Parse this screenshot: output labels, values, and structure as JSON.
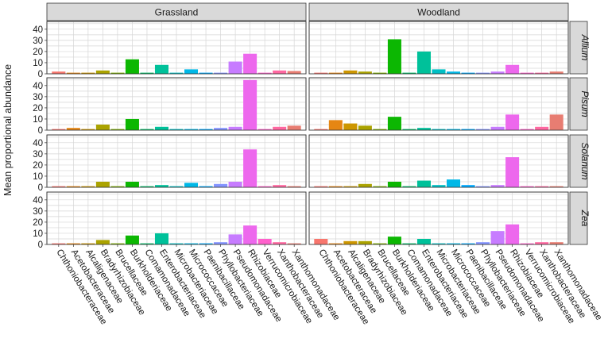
{
  "chart_data": {
    "type": "bar",
    "title": "",
    "xlabel": "",
    "ylabel": "Mean proportional abundance",
    "ylim": [
      0,
      47
    ],
    "yticks": [
      0,
      10,
      20,
      30,
      40
    ],
    "grid": true,
    "columns": [
      "Grassland",
      "Woodland"
    ],
    "rows": [
      "Allium",
      "Pisum",
      "Solanum",
      "Zea"
    ],
    "categories": [
      "Chthoniobacteraceae",
      "Acetobacteraceae",
      "Alcaligenaceae",
      "Bradyrhizobiaceae",
      "Brucellaceae",
      "Burkholderiaceae",
      "Comamonadaceae",
      "Enterobacteriaceae",
      "Microbacteriaceae",
      "Micrococcaceae",
      "Paenibacillaceae",
      "Phyllobacteriaceae",
      "Pseudomonadaceae",
      "Rhizobiaceae",
      "Verrucomicrobiaceae",
      "Xanthobacteraceae",
      "Xanthomonadaceae"
    ],
    "colors": [
      "#F8766D",
      "#E68613",
      "#CD9600",
      "#ABA300",
      "#7CAE00",
      "#0CB702",
      "#00BE67",
      "#00C19A",
      "#00BFC4",
      "#00B8E7",
      "#00A9FF",
      "#8494FF",
      "#C77CFF",
      "#ED68ED",
      "#FF61CC",
      "#FF68A1",
      "#E87D72"
    ],
    "panels": [
      {
        "column": "Grassland",
        "row": "Allium",
        "values": [
          2,
          1,
          1,
          3,
          1,
          13,
          1,
          8,
          1,
          4,
          1,
          1,
          11,
          18,
          1,
          3,
          2.5
        ]
      },
      {
        "column": "Woodland",
        "row": "Allium",
        "values": [
          1,
          1,
          3,
          2,
          1,
          31,
          1,
          20,
          4,
          2,
          1,
          1,
          2,
          8,
          1,
          1,
          2
        ]
      },
      {
        "column": "Grassland",
        "row": "Pisum",
        "values": [
          1,
          2,
          1,
          5,
          1,
          10,
          1,
          3,
          1,
          1,
          1,
          2,
          3,
          45,
          1,
          3,
          4
        ]
      },
      {
        "column": "Woodland",
        "row": "Pisum",
        "values": [
          1,
          9,
          6,
          4,
          1,
          12,
          1,
          2,
          1,
          1,
          1,
          1,
          3,
          14,
          1,
          3,
          14
        ]
      },
      {
        "column": "Grassland",
        "row": "Solanum",
        "values": [
          1,
          1,
          1,
          5,
          1,
          5,
          1,
          2,
          1,
          4,
          1,
          3,
          5,
          34,
          1,
          2,
          1
        ]
      },
      {
        "column": "Woodland",
        "row": "Solanum",
        "values": [
          1,
          1,
          1,
          3,
          1,
          5,
          1,
          6,
          2,
          7,
          2,
          1,
          2,
          27,
          1,
          1,
          1
        ]
      },
      {
        "column": "Grassland",
        "row": "Zea",
        "values": [
          1,
          1,
          1,
          4,
          1,
          8,
          1,
          10,
          1,
          1,
          1,
          2,
          9,
          17,
          5,
          2,
          1
        ]
      },
      {
        "column": "Woodland",
        "row": "Zea",
        "values": [
          5,
          1,
          3,
          3,
          1,
          7,
          1,
          5,
          1,
          1,
          1,
          2,
          12,
          18,
          1,
          2,
          2
        ]
      }
    ]
  }
}
